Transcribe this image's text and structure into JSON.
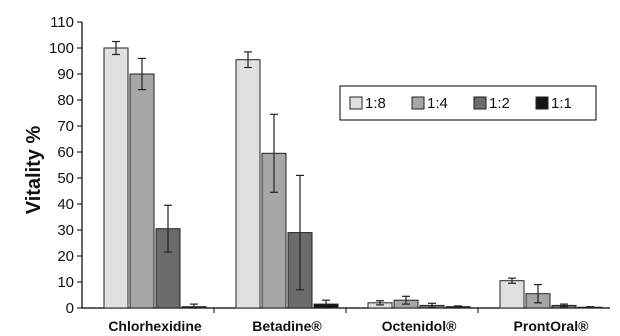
{
  "chart_data": {
    "type": "bar",
    "title": "",
    "xlabel": "",
    "ylabel": "Vitality %",
    "ylim": [
      0,
      110
    ],
    "yticks": [
      0,
      10,
      20,
      30,
      40,
      50,
      60,
      70,
      80,
      90,
      100,
      110
    ],
    "grid": false,
    "legend_position": "top-right",
    "categories": [
      "Chlorhexidine",
      "Betadine®",
      "Octenidol®",
      "ProntOral®"
    ],
    "series": [
      {
        "name": "1:8",
        "color": "#e0e0e0",
        "values": [
          100,
          95.5,
          2,
          10.5
        ],
        "errors": [
          2.5,
          3,
          0.8,
          1
        ]
      },
      {
        "name": "1:4",
        "color": "#a6a6a6",
        "values": [
          90,
          59.5,
          3,
          5.5
        ],
        "errors": [
          6,
          15,
          1.5,
          3.5
        ]
      },
      {
        "name": "1:2",
        "color": "#6b6b6b",
        "values": [
          30.5,
          29,
          1,
          1
        ],
        "errors": [
          9,
          22,
          0.8,
          0.5
        ]
      },
      {
        "name": "1:1",
        "color": "#141414",
        "values": [
          0.5,
          1.5,
          0.5,
          0.3
        ],
        "errors": [
          1,
          1.5,
          0.3,
          0.2
        ]
      }
    ]
  }
}
